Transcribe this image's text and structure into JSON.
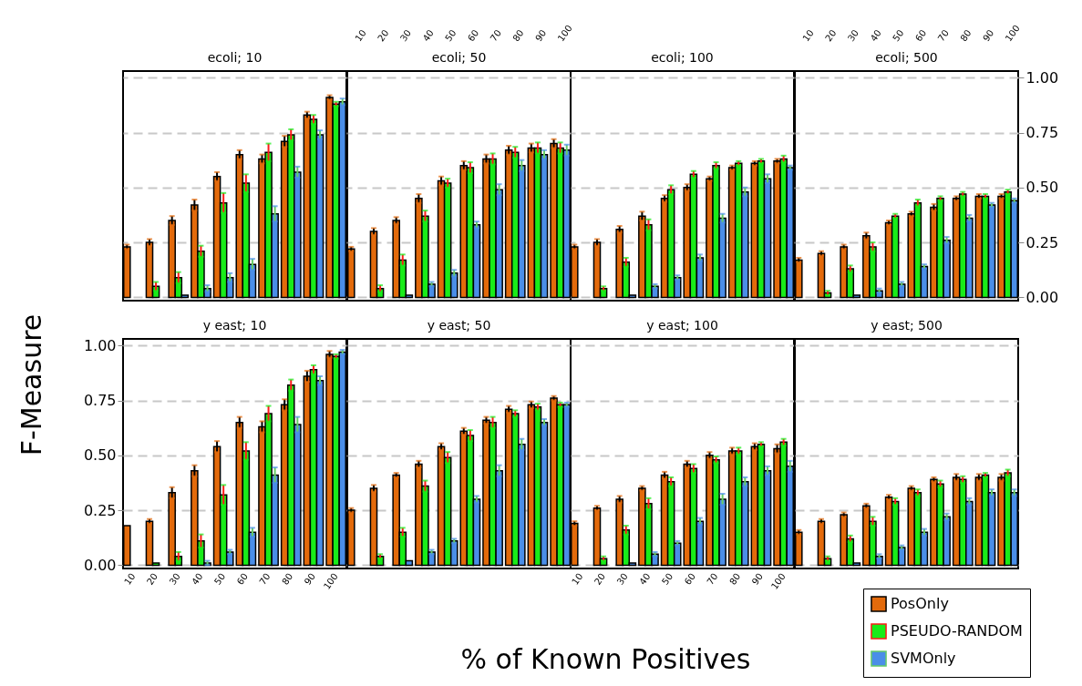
{
  "chart_data": [
    {
      "type": "bar",
      "title": "ecoli; 10",
      "categories": [
        "10",
        "20",
        "30",
        "40",
        "50",
        "60",
        "70",
        "80",
        "90",
        "100"
      ],
      "ylim": [
        -0.015,
        1.03
      ],
      "yticks": [
        0,
        0.25,
        0.5,
        0.75,
        1
      ],
      "grid": "y",
      "tick_labels": false,
      "series": [
        {
          "color": "#e36a0b",
          "values": [
            0.23,
            0.25,
            0.35,
            0.42,
            0.55,
            0.65,
            0.63,
            0.71,
            0.83,
            0.91
          ],
          "errors": [
            0.01,
            0.015,
            0.02,
            0.025,
            0.02,
            0.02,
            0.02,
            0.025,
            0.015,
            0.01
          ]
        },
        {
          "color": "#19ec19",
          "values": [
            0,
            0.05,
            0.09,
            0.21,
            0.43,
            0.52,
            0.66,
            0.74,
            0.81,
            0.88
          ],
          "errors": [
            null,
            0.02,
            0.025,
            0.025,
            0.045,
            0.04,
            0.04,
            0.025,
            0.02,
            0.01
          ]
        },
        {
          "color": "#4a8ee8",
          "values": [
            0,
            0,
            0.01,
            0.04,
            0.09,
            0.15,
            0.38,
            0.57,
            0.74,
            0.89
          ],
          "errors": [
            null,
            null,
            null,
            0.015,
            0.02,
            0.025,
            0.035,
            0.025,
            0.02,
            0.015
          ]
        }
      ]
    },
    {
      "type": "bar",
      "title": "ecoli; 50",
      "categories": [
        "10",
        "20",
        "30",
        "40",
        "50",
        "60",
        "70",
        "80",
        "90",
        "100"
      ],
      "ylim": [
        -0.015,
        1.03
      ],
      "yticks": [
        0,
        0.25,
        0.5,
        0.75,
        1
      ],
      "grid": "y",
      "tick_labels": "x",
      "series": [
        {
          "color": "#e36a0b",
          "values": [
            0.22,
            0.3,
            0.35,
            0.45,
            0.53,
            0.6,
            0.63,
            0.67,
            0.68,
            0.7
          ],
          "errors": [
            0.01,
            0.015,
            0.015,
            0.02,
            0.02,
            0.02,
            0.02,
            0.02,
            0.02,
            0.02
          ]
        },
        {
          "color": "#19ec19",
          "values": [
            0,
            0.04,
            0.17,
            0.37,
            0.52,
            0.59,
            0.63,
            0.66,
            0.68,
            0.68
          ],
          "errors": [
            null,
            0.015,
            0.025,
            0.025,
            0.02,
            0.025,
            0.025,
            0.025,
            0.025,
            0.025
          ]
        },
        {
          "color": "#4a8ee8",
          "values": [
            0,
            0,
            0.01,
            0.06,
            0.11,
            0.33,
            0.49,
            0.6,
            0.65,
            0.67
          ],
          "errors": [
            null,
            null,
            null,
            0.01,
            0.015,
            0.015,
            0.025,
            0.025,
            0.02,
            0.025
          ]
        }
      ]
    },
    {
      "type": "bar",
      "title": "ecoli; 100",
      "categories": [
        "10",
        "20",
        "30",
        "40",
        "50",
        "60",
        "70",
        "80",
        "90",
        "100"
      ],
      "ylim": [
        -0.015,
        1.03
      ],
      "yticks": [
        0,
        0.25,
        0.5,
        0.75,
        1
      ],
      "grid": "y",
      "tick_labels": false,
      "series": [
        {
          "color": "#e36a0b",
          "values": [
            0.23,
            0.25,
            0.31,
            0.37,
            0.45,
            0.5,
            0.54,
            0.59,
            0.61,
            0.62
          ],
          "errors": [
            0.01,
            0.015,
            0.015,
            0.02,
            0.015,
            0.015,
            0.01,
            0.01,
            0.01,
            0.01
          ]
        },
        {
          "color": "#19ec19",
          "values": [
            0,
            0.04,
            0.16,
            0.33,
            0.49,
            0.56,
            0.6,
            0.61,
            0.62,
            0.63
          ],
          "errors": [
            null,
            0.01,
            0.02,
            0.025,
            0.02,
            0.015,
            0.015,
            0.01,
            0.01,
            0.015
          ]
        },
        {
          "color": "#4a8ee8",
          "values": [
            0,
            0,
            0.01,
            0.05,
            0.09,
            0.18,
            0.36,
            0.48,
            0.54,
            0.59
          ],
          "errors": [
            null,
            null,
            null,
            0.01,
            0.01,
            0.015,
            0.02,
            0.02,
            0.02,
            0.01
          ]
        }
      ]
    },
    {
      "type": "bar",
      "title": "ecoli; 500",
      "categories": [
        "10",
        "20",
        "30",
        "40",
        "50",
        "60",
        "70",
        "80",
        "90",
        "100"
      ],
      "ylim": [
        -0.015,
        1.03
      ],
      "yticks": [
        {
          "value": 0,
          "label": "0.00"
        },
        {
          "value": 0.25,
          "label": "0.25"
        },
        {
          "value": 0.5,
          "label": "0.50"
        },
        {
          "value": 0.75,
          "label": "0.75"
        },
        {
          "value": 1,
          "label": "1.00"
        }
      ],
      "grid": "y",
      "series": [
        {
          "color": "#e36a0b",
          "values": [
            0.17,
            0.2,
            0.23,
            0.28,
            0.34,
            0.38,
            0.41,
            0.45,
            0.46,
            0.46
          ],
          "errors": [
            0.01,
            0.01,
            0.01,
            0.015,
            0.01,
            0.01,
            0.015,
            0.01,
            0.01,
            0.01
          ]
        },
        {
          "color": "#19ec19",
          "values": [
            0,
            0.02,
            0.13,
            0.23,
            0.37,
            0.43,
            0.45,
            0.47,
            0.46,
            0.48
          ],
          "errors": [
            null,
            0.01,
            0.015,
            0.02,
            0.01,
            0.015,
            0.01,
            0.01,
            0.01,
            0.01
          ]
        },
        {
          "color": "#4a8ee8",
          "values": [
            0,
            0,
            0.01,
            0.03,
            0.06,
            0.14,
            0.26,
            0.36,
            0.42,
            0.44
          ],
          "errors": [
            null,
            null,
            null,
            0.01,
            0.01,
            0.01,
            0.015,
            0.015,
            0.01,
            0.01
          ]
        }
      ]
    },
    {
      "type": "bar",
      "title": "y east; 10",
      "ylabel": "F-Measure",
      "categories": [
        "10",
        "20",
        "30",
        "40",
        "50",
        "60",
        "70",
        "80",
        "90",
        "100"
      ],
      "ylim": [
        -0.015,
        1.03
      ],
      "yticks": [
        {
          "value": 0,
          "label": "0.00"
        },
        {
          "value": 0.25,
          "label": "0.25"
        },
        {
          "value": 0.5,
          "label": "0.50"
        },
        {
          "value": 0.75,
          "label": "0.75"
        },
        {
          "value": 1,
          "label": "1.00"
        }
      ],
      "grid": "y",
      "series": [
        {
          "color": "#e36a0b",
          "values": [
            0.18,
            0.2,
            0.33,
            0.43,
            0.54,
            0.65,
            0.63,
            0.73,
            0.86,
            0.96
          ],
          "errors": [
            null,
            0.01,
            0.025,
            0.025,
            0.025,
            0.025,
            0.025,
            0.025,
            0.025,
            0.015
          ]
        },
        {
          "color": "#19ec19",
          "values": [
            0,
            0.01,
            0.04,
            0.11,
            0.32,
            0.52,
            0.69,
            0.82,
            0.89,
            0.95
          ],
          "errors": [
            null,
            null,
            0.02,
            0.03,
            0.045,
            0.04,
            0.035,
            0.025,
            0.02,
            0.01
          ]
        },
        {
          "color": "#4a8ee8",
          "values": [
            0,
            0,
            0,
            0.01,
            0.06,
            0.15,
            0.41,
            0.64,
            0.84,
            0.97
          ],
          "errors": [
            null,
            null,
            null,
            0.01,
            0.01,
            0.02,
            0.035,
            0.035,
            0.02,
            0.01
          ]
        }
      ]
    },
    {
      "type": "bar",
      "title": "y east; 50",
      "categories": [
        "10",
        "20",
        "30",
        "40",
        "50",
        "60",
        "70",
        "80",
        "90",
        "100"
      ],
      "ylim": [
        -0.015,
        1.03
      ],
      "yticks": [
        0,
        0.25,
        0.5,
        0.75,
        1
      ],
      "grid": "y",
      "tick_labels": false,
      "series": [
        {
          "color": "#e36a0b",
          "values": [
            0.25,
            0.35,
            0.41,
            0.46,
            0.54,
            0.61,
            0.66,
            0.71,
            0.73,
            0.76
          ],
          "errors": [
            0.01,
            0.015,
            0.01,
            0.015,
            0.015,
            0.015,
            0.015,
            0.015,
            0.015,
            0.01
          ]
        },
        {
          "color": "#19ec19",
          "values": [
            0,
            0.04,
            0.15,
            0.36,
            0.49,
            0.59,
            0.65,
            0.69,
            0.72,
            0.73
          ],
          "errors": [
            null,
            0.01,
            0.02,
            0.025,
            0.025,
            0.025,
            0.025,
            0.015,
            0.015,
            0.01
          ]
        },
        {
          "color": "#4a8ee8",
          "values": [
            0,
            0,
            0.02,
            0.06,
            0.11,
            0.3,
            0.43,
            0.55,
            0.65,
            0.73
          ],
          "errors": [
            null,
            null,
            null,
            0.01,
            0.01,
            0.015,
            0.025,
            0.025,
            0.015,
            0.01
          ]
        }
      ]
    },
    {
      "type": "bar",
      "title": "y east; 100",
      "xlabel": "% of Known Positives",
      "categories": [
        "10",
        "20",
        "30",
        "40",
        "50",
        "60",
        "70",
        "80",
        "90",
        "100"
      ],
      "ylim": [
        -0.015,
        1.03
      ],
      "yticks": [
        0,
        0.25,
        0.5,
        0.75,
        1
      ],
      "grid": "y",
      "tick_labels": "x",
      "series": [
        {
          "color": "#e36a0b",
          "values": [
            0.19,
            0.26,
            0.3,
            0.35,
            0.41,
            0.46,
            0.5,
            0.52,
            0.54,
            0.53
          ],
          "errors": [
            0.01,
            0.01,
            0.015,
            0.01,
            0.015,
            0.015,
            0.015,
            0.015,
            0.015,
            0.02
          ]
        },
        {
          "color": "#19ec19",
          "values": [
            0,
            0.03,
            0.16,
            0.28,
            0.38,
            0.44,
            0.48,
            0.52,
            0.55,
            0.56
          ],
          "errors": [
            null,
            0.01,
            0.02,
            0.025,
            0.02,
            0.02,
            0.015,
            0.015,
            0.01,
            0.015
          ]
        },
        {
          "color": "#4a8ee8",
          "values": [
            0,
            0,
            0.01,
            0.05,
            0.1,
            0.2,
            0.3,
            0.38,
            0.43,
            0.45
          ],
          "errors": [
            null,
            null,
            null,
            0.01,
            0.01,
            0.015,
            0.025,
            0.02,
            0.02,
            0.025
          ]
        }
      ]
    },
    {
      "type": "bar",
      "title": "y east; 500",
      "categories": [
        "10",
        "20",
        "30",
        "40",
        "50",
        "60",
        "70",
        "80",
        "90",
        "100"
      ],
      "ylim": [
        -0.015,
        1.03
      ],
      "yticks": [
        0,
        0.25,
        0.5,
        0.75,
        1
      ],
      "grid": "y",
      "tick_labels": false,
      "legend": "bottom right",
      "series": [
        {
          "name": "PosOnly",
          "color": "#e36a0b",
          "values": [
            0.15,
            0.2,
            0.23,
            0.27,
            0.31,
            0.35,
            0.39,
            0.4,
            0.4,
            0.4
          ],
          "errors": [
            0.01,
            0.01,
            0.01,
            0.01,
            0.01,
            0.01,
            0.01,
            0.015,
            0.015,
            0.015
          ]
        },
        {
          "name": "PSEUDO-RANDOM",
          "color": "#19ec19",
          "values": [
            0,
            0.03,
            0.12,
            0.2,
            0.29,
            0.33,
            0.37,
            0.39,
            0.41,
            0.42
          ],
          "errors": [
            null,
            0.01,
            0.015,
            0.02,
            0.015,
            0.015,
            0.015,
            0.015,
            0.01,
            0.015
          ]
        },
        {
          "name": "SVMOnly",
          "color": "#4a8ee8",
          "values": [
            0,
            0,
            0.01,
            0.04,
            0.08,
            0.15,
            0.22,
            0.29,
            0.33,
            0.33
          ],
          "errors": [
            null,
            null,
            null,
            0.01,
            0.01,
            0.015,
            0.015,
            0.015,
            0.015,
            0.015
          ]
        }
      ]
    }
  ]
}
